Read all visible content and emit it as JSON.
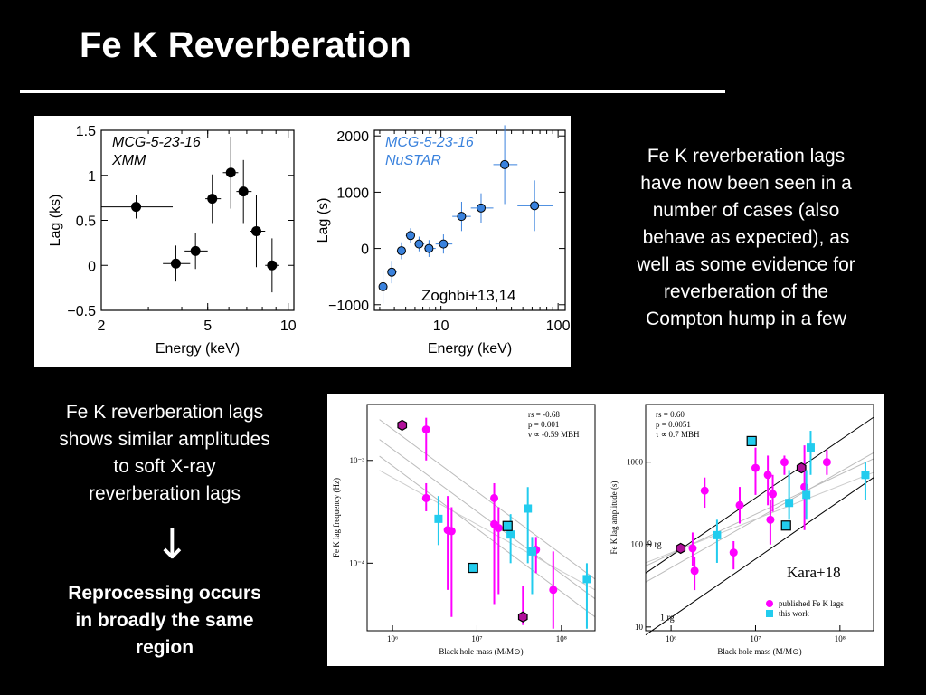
{
  "slide": {
    "title": "Fe K Reverberation",
    "right_text": [
      "Fe K reverberation lags",
      "have now been seen in a",
      "number of cases (also",
      "behave as expected), as",
      "well as some evidence for",
      "reverberation of the",
      "Compton hump in a few"
    ],
    "left_text": [
      "Fe K reverberation lags",
      "shows similar amplitudes",
      "to soft X-ray",
      "reverberation lags"
    ],
    "arrow": "↓",
    "conclusion": [
      "Reprocessing occurs",
      "in broadly the same",
      "region"
    ]
  },
  "colors": {
    "background": "#000000",
    "text": "#ffffff",
    "nustar": "#3a82dd",
    "published": "#ff00ff",
    "thiswork": "#22ccee"
  },
  "chart_data": [
    {
      "type": "scatter",
      "annotation": [
        "MCG-5-23-16",
        "XMM"
      ],
      "xlabel": "Energy (keV)",
      "ylabel": "Lag (ks)",
      "xscale": "log",
      "xlim": [
        2,
        10.5
      ],
      "ylim": [
        -0.5,
        1.5
      ],
      "xticks": [
        {
          "v": 2,
          "label": "2"
        },
        {
          "v": 5,
          "label": "5"
        },
        {
          "v": 10,
          "label": "10"
        }
      ],
      "yticks": [
        {
          "v": 1.5,
          "label": "1.5"
        },
        {
          "v": 1,
          "label": "1"
        },
        {
          "v": 0.5,
          "label": "0.5"
        },
        {
          "v": 0,
          "label": "0"
        },
        {
          "v": -0.5,
          "label": "−0.5"
        }
      ],
      "points": [
        {
          "x": 2.7,
          "y": 0.65,
          "x0": 2.0,
          "x1": 3.7,
          "yerr": 0.13
        },
        {
          "x": 3.8,
          "y": 0.02,
          "x0": 3.4,
          "x1": 4.3,
          "yerr": 0.2
        },
        {
          "x": 4.5,
          "y": 0.16,
          "x0": 4.1,
          "x1": 5.0,
          "yerr": 0.2
        },
        {
          "x": 5.2,
          "y": 0.74,
          "x0": 4.9,
          "x1": 5.6,
          "yerr": 0.27
        },
        {
          "x": 6.1,
          "y": 1.03,
          "x0": 5.7,
          "x1": 6.5,
          "yerr": 0.4
        },
        {
          "x": 6.8,
          "y": 0.82,
          "x0": 6.4,
          "x1": 7.3,
          "yerr": 0.35
        },
        {
          "x": 7.6,
          "y": 0.38,
          "x0": 7.2,
          "x1": 8.2,
          "yerr": 0.4
        },
        {
          "x": 8.7,
          "y": 0.0,
          "x0": 8.2,
          "x1": 9.2,
          "yerr": 0.3
        }
      ]
    },
    {
      "type": "scatter",
      "annotation": [
        "MCG-5-23-16",
        "NuSTAR"
      ],
      "citation": "Zoghbi+13,14",
      "xlabel": "Energy (keV)",
      "ylabel": "Lag (s)",
      "xscale": "log",
      "xlim": [
        2.7,
        115
      ],
      "ylim": [
        -1100,
        2100
      ],
      "xticks": [
        {
          "v": 10,
          "label": "10"
        },
        {
          "v": 100,
          "label": "100"
        }
      ],
      "yticks": [
        {
          "v": 2000,
          "label": "2000"
        },
        {
          "v": 1000,
          "label": "1000"
        },
        {
          "v": 0,
          "label": "0"
        },
        {
          "v": -1000,
          "label": "−1000"
        }
      ],
      "points": [
        {
          "x": 3.2,
          "y": -680,
          "x0": 3.0,
          "x1": 3.5,
          "yerr": 300
        },
        {
          "x": 3.8,
          "y": -420,
          "x0": 3.5,
          "x1": 4.2,
          "yerr": 200
        },
        {
          "x": 4.6,
          "y": -40,
          "x0": 4.2,
          "x1": 5.0,
          "yerr": 150
        },
        {
          "x": 5.5,
          "y": 230,
          "x0": 5.0,
          "x1": 6.0,
          "yerr": 130
        },
        {
          "x": 6.5,
          "y": 80,
          "x0": 6.0,
          "x1": 7.2,
          "yerr": 130
        },
        {
          "x": 7.9,
          "y": 0,
          "x0": 7.2,
          "x1": 9.0,
          "yerr": 150
        },
        {
          "x": 10.5,
          "y": 80,
          "x0": 9.0,
          "x1": 12.5,
          "yerr": 170
        },
        {
          "x": 15,
          "y": 570,
          "x0": 12.5,
          "x1": 18,
          "yerr": 260
        },
        {
          "x": 22,
          "y": 720,
          "x0": 18,
          "x1": 28,
          "yerr": 260
        },
        {
          "x": 35,
          "y": 1490,
          "x0": 28,
          "x1": 45,
          "yerr": 700
        },
        {
          "x": 63,
          "y": 760,
          "x0": 45,
          "x1": 90,
          "yerr": 450
        }
      ]
    },
    {
      "type": "scatter",
      "annotation": [
        "r_s = -0.68",
        "p = 0.001",
        "ν ∝ -0.59 M_BH"
      ],
      "xlabel": "Black hole mass (M/M_⊙)",
      "ylabel": "Fe K lag frequency (Hz)",
      "xscale": "log",
      "yscale": "log",
      "xlim": [
        500000.0,
        250000000.0
      ],
      "ylim": [
        2.2e-05,
        0.0035
      ],
      "xticks": [
        {
          "v": 1000000.0,
          "label": "10⁶"
        },
        {
          "v": 10000000.0,
          "label": "10⁷"
        },
        {
          "v": 100000000.0,
          "label": "10⁸"
        }
      ],
      "yticks": [
        {
          "v": 0.001,
          "label": "10⁻³"
        },
        {
          "v": 0.0001,
          "label": "10⁻⁴"
        }
      ],
      "series": [
        {
          "name": "published Fe K lags",
          "marker": "circle",
          "points": [
            {
              "x": 2500000.0,
              "y": 0.002,
              "lo": 0.001,
              "hi": 0.0026
            },
            {
              "x": 2500000.0,
              "y": 0.00043,
              "lo": 0.00032,
              "hi": 0.0006
            },
            {
              "x": 4500000.0,
              "y": 0.00021,
              "lo": 5.5e-05,
              "hi": 0.00045
            },
            {
              "x": 5000000.0,
              "y": 0.000205,
              "lo": 3e-05,
              "hi": 0.00035
            },
            {
              "x": 16000000.0,
              "y": 0.00043,
              "lo": 0.00014,
              "hi": 0.0006
            },
            {
              "x": 16000000.0,
              "y": 0.00024,
              "lo": 4e-05,
              "hi": 0.0004
            },
            {
              "x": 18000000.0,
              "y": 0.00022,
              "lo": 5e-05,
              "hi": 0.00035
            },
            {
              "x": 50000000.0,
              "y": 0.000135,
              "lo": 8e-05,
              "hi": 0.00018
            },
            {
              "x": 80000000.0,
              "y": 5.5e-05,
              "lo": 2.3e-05,
              "hi": 0.00013
            }
          ]
        },
        {
          "name": "published Fe K lags (highlighted)",
          "marker": "hexagon",
          "points": [
            {
              "x": 1300000.0,
              "y": 0.0022,
              "lo": 0.002,
              "hi": 0.0024
            },
            {
              "x": 35000000.0,
              "y": 3e-05,
              "lo": 2.5e-05,
              "hi": 6e-05
            }
          ]
        },
        {
          "name": "this work",
          "marker": "square",
          "points": [
            {
              "x": 3500000.0,
              "y": 0.00027,
              "lo": 0.00015,
              "hi": 0.00045
            },
            {
              "x": 25000000.0,
              "y": 0.00019,
              "lo": 0.0001,
              "hi": 0.0003
            },
            {
              "x": 40000000.0,
              "y": 0.00034,
              "lo": 0.0001,
              "hi": 0.00055
            },
            {
              "x": 45000000.0,
              "y": 0.00013,
              "lo": 5e-05,
              "hi": 0.00018
            },
            {
              "x": 200000000.0,
              "y": 7e-05,
              "lo": 2.3e-05,
              "hi": 0.0001
            }
          ]
        },
        {
          "name": "this work (outlined)",
          "marker": "square-outline",
          "points": [
            {
              "x": 9000000.0,
              "y": 9e-05,
              "lo": 9e-05,
              "hi": 9e-05
            },
            {
              "x": 23000000.0,
              "y": 0.00023,
              "lo": 0.00023,
              "hi": 0.00023
            }
          ]
        }
      ]
    },
    {
      "type": "scatter",
      "annotation": [
        "r_s = 0.60",
        "p = 0.0051",
        "τ ∝ 0.7 M_BH"
      ],
      "citation": "Kara+18",
      "legend": [
        "published Fe K lags",
        "this work"
      ],
      "line_labels": [
        "9 r_g",
        "1 r_g"
      ],
      "xlabel": "Black hole mass (M/M_⊙)",
      "ylabel": "Fe K lag amplitude (s)",
      "xscale": "log",
      "yscale": "log",
      "xlim": [
        500000.0,
        250000000.0
      ],
      "ylim": [
        9,
        5000
      ],
      "xticks": [
        {
          "v": 1000000.0,
          "label": "10⁶"
        },
        {
          "v": 10000000.0,
          "label": "10⁷"
        },
        {
          "v": 100000000.0,
          "label": "10⁸"
        }
      ],
      "yticks": [
        {
          "v": 1000,
          "label": "1000"
        },
        {
          "v": 100,
          "label": "100"
        },
        {
          "v": 10,
          "label": "10"
        }
      ],
      "series": [
        {
          "name": "published Fe K lags",
          "marker": "circle",
          "points": [
            {
              "x": 1800000.0,
              "y": 90,
              "lo": 55,
              "hi": 140
            },
            {
              "x": 1900000.0,
              "y": 48,
              "lo": 28,
              "hi": 70
            },
            {
              "x": 2500000.0,
              "y": 450,
              "lo": 280,
              "hi": 650
            },
            {
              "x": 5500000.0,
              "y": 80,
              "lo": 50,
              "hi": 110
            },
            {
              "x": 6500000.0,
              "y": 300,
              "lo": 180,
              "hi": 500
            },
            {
              "x": 10000000.0,
              "y": 850,
              "lo": 400,
              "hi": 1500
            },
            {
              "x": 14000000.0,
              "y": 700,
              "lo": 300,
              "hi": 1200
            },
            {
              "x": 15000000.0,
              "y": 200,
              "lo": 100,
              "hi": 350
            },
            {
              "x": 16000000.0,
              "y": 410,
              "lo": 250,
              "hi": 700
            },
            {
              "x": 22000000.0,
              "y": 1000,
              "lo": 700,
              "hi": 1200
            },
            {
              "x": 38000000.0,
              "y": 500,
              "lo": 150,
              "hi": 1600
            },
            {
              "x": 70000000.0,
              "y": 1000,
              "lo": 700,
              "hi": 1400
            }
          ]
        },
        {
          "name": "published Fe K lags (highlighted)",
          "marker": "hexagon",
          "points": [
            {
              "x": 1300000.0,
              "y": 90,
              "lo": 85,
              "hi": 95
            },
            {
              "x": 35000000.0,
              "y": 850,
              "lo": 800,
              "hi": 900
            }
          ]
        },
        {
          "name": "this work",
          "marker": "square",
          "points": [
            {
              "x": 3500000.0,
              "y": 130,
              "lo": 60,
              "hi": 200
            },
            {
              "x": 25000000.0,
              "y": 320,
              "lo": 200,
              "hi": 800
            },
            {
              "x": 40000000.0,
              "y": 400,
              "lo": 200,
              "hi": 800
            },
            {
              "x": 45000000.0,
              "y": 1500,
              "lo": 700,
              "hi": 2400
            },
            {
              "x": 200000000.0,
              "y": 700,
              "lo": 350,
              "hi": 1000
            }
          ]
        },
        {
          "name": "this work (outlined)",
          "marker": "square-outline",
          "points": [
            {
              "x": 9000000.0,
              "y": 1800,
              "lo": 1800,
              "hi": 1800
            },
            {
              "x": 23000000.0,
              "y": 170,
              "lo": 170,
              "hi": 170
            }
          ]
        }
      ]
    }
  ]
}
